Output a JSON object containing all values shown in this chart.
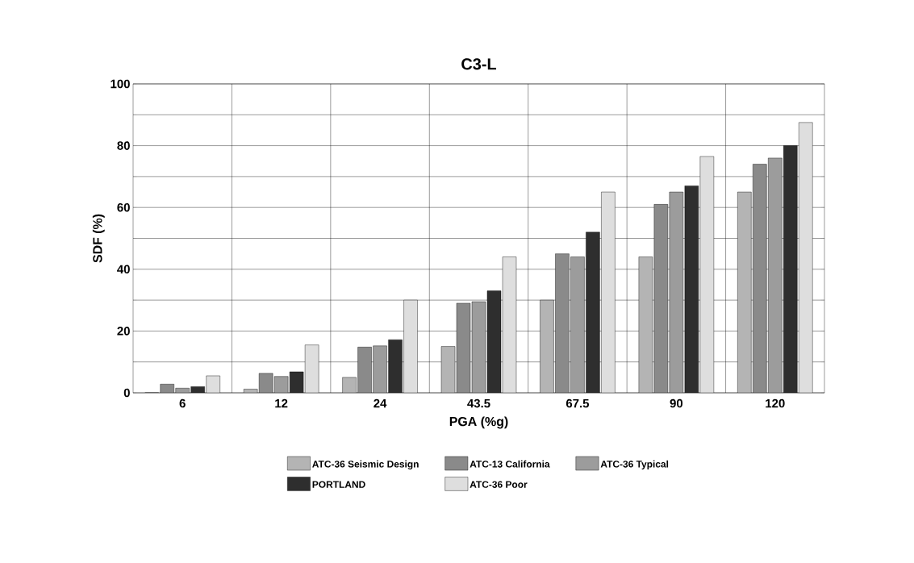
{
  "chart_data": {
    "type": "bar",
    "title": "C3-L",
    "xlabel": "PGA (%g)",
    "ylabel": "SDF (%)",
    "categories": [
      "6",
      "12",
      "24",
      "43.5",
      "67.5",
      "90",
      "120"
    ],
    "series": [
      {
        "name": "ATC-36 Seismic Design",
        "color": "#b4b4b4",
        "values": [
          0,
          1.2,
          5,
          15,
          30,
          44,
          65
        ]
      },
      {
        "name": "ATC-13 California",
        "color": "#8a8a8a",
        "values": [
          2.8,
          6.3,
          14.8,
          29,
          45,
          61,
          74
        ]
      },
      {
        "name": "ATC-36 Typical",
        "color": "#9c9c9c",
        "values": [
          1.5,
          5.3,
          15.2,
          29.5,
          44,
          65,
          76
        ]
      },
      {
        "name": "PORTLAND",
        "color": "#2e2e2e",
        "values": [
          2,
          6.8,
          17.2,
          33,
          52,
          67,
          80
        ]
      },
      {
        "name": "ATC-36 Poor",
        "color": "#dedede",
        "values": [
          5.5,
          15.5,
          30,
          44,
          65,
          76.5,
          87.5
        ]
      }
    ],
    "ylim": [
      0,
      100
    ],
    "yticks": [
      0,
      {
        "value": 10,
        "label": null
      },
      20,
      {
        "value": 30,
        "label": null
      },
      40,
      {
        "value": 50,
        "label": null
      },
      60,
      {
        "value": 70,
        "label": null
      },
      80,
      {
        "value": 90,
        "label": null
      },
      100
    ],
    "grid": true,
    "legend": "bottom"
  }
}
